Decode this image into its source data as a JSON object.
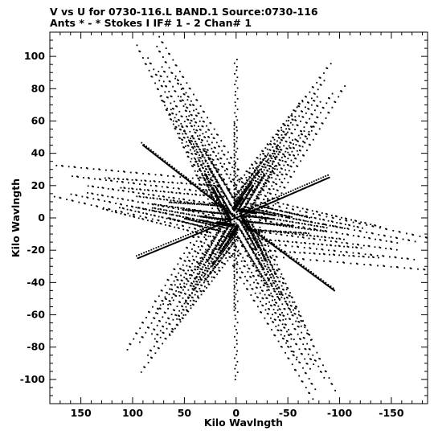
{
  "title_line1": "V vs U for 0730-116.L BAND.1   Source:0730-116",
  "title_line2": "Ants * - *     Stokes I   IF# 1 - 2   Chan# 1",
  "chart_data": {
    "type": "scatter",
    "title": "V vs U for 0730-116.L BAND.1   Source:0730-116",
    "subtitle": "Ants * - *     Stokes I   IF# 1 - 2   Chan# 1",
    "xlabel": "Kilo Wavlngth",
    "ylabel": "Kilo Wavlngth",
    "xlim": [
      180,
      -185
    ],
    "ylim": [
      -115,
      115
    ],
    "x_axis_reversed": true,
    "xticks": [
      150,
      100,
      50,
      0,
      -50,
      -100,
      -150
    ],
    "yticks": [
      100,
      80,
      60,
      40,
      20,
      0,
      -20,
      -40,
      -60,
      -80,
      -100
    ],
    "grid": false,
    "marker": "dot",
    "color": "#000000",
    "description_of_coverage": "six-armed snowflake (u,v) coverage with conjugate symmetry",
    "arm_tips": [
      {
        "u": 92,
        "v": 110
      },
      {
        "u": -92,
        "v": -110
      },
      {
        "u": 175,
        "v": 18
      },
      {
        "u": -190,
        "v": -18
      },
      {
        "u": -95,
        "v": 92
      },
      {
        "u": 95,
        "v": -92
      }
    ],
    "dense_lines": [
      {
        "from": [
          0,
          0
        ],
        "to": [
          90,
          45
        ]
      },
      {
        "from": [
          0,
          0
        ],
        "to": [
          -95,
          -45
        ]
      },
      {
        "from": [
          0,
          0
        ],
        "to": [
          -90,
          25
        ]
      },
      {
        "from": [
          0,
          0
        ],
        "to": [
          95,
          -25
        ]
      }
    ]
  }
}
